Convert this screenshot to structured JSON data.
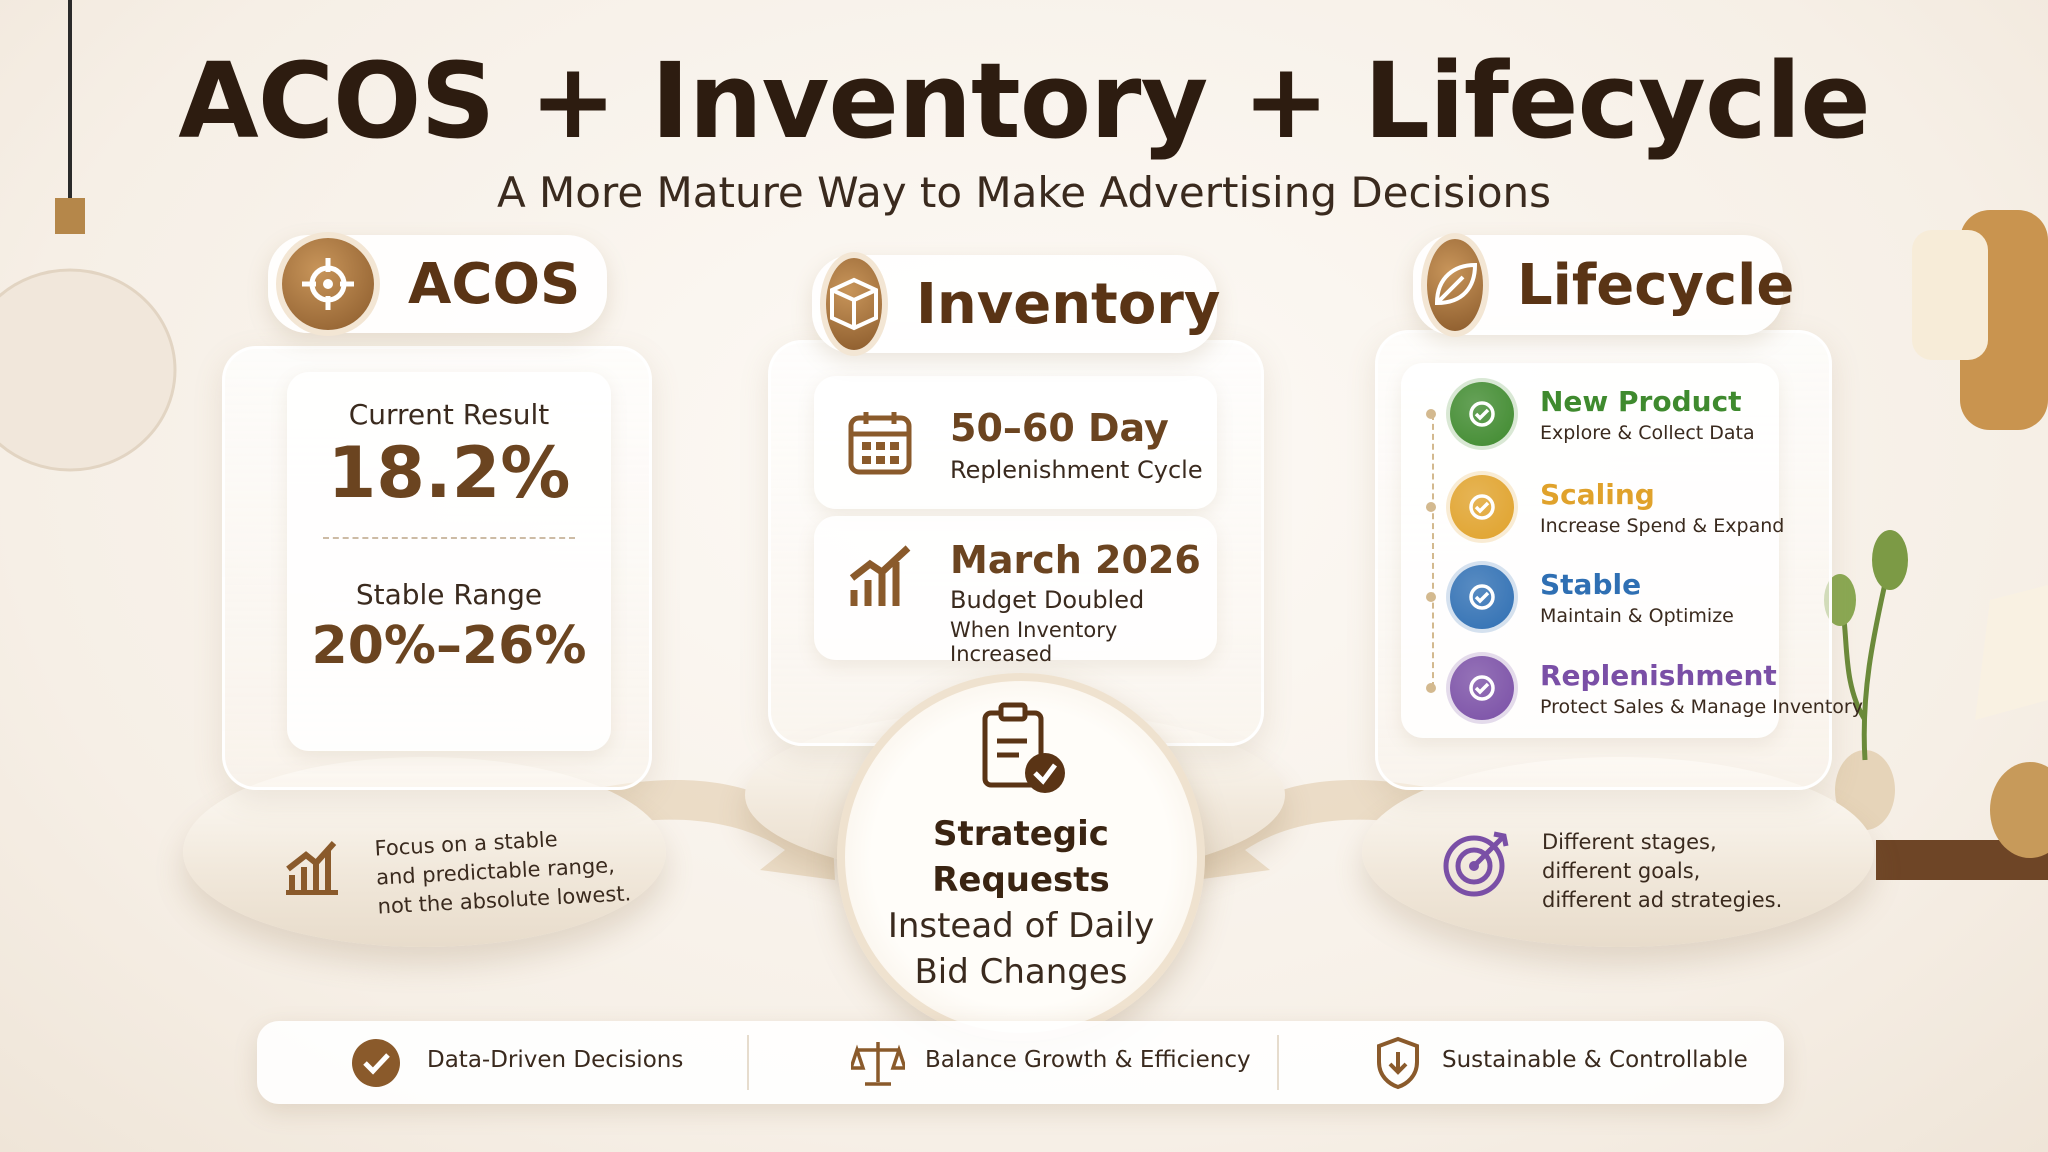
{
  "header": {
    "title": "ACOS + Inventory + Lifecycle",
    "subtitle": "A More Mature Way to Make Advertising Decisions"
  },
  "acos": {
    "title": "ACOS",
    "current_label": "Current Result",
    "current_value": "18.2%",
    "stable_label": "Stable Range",
    "stable_value": "20%–26%",
    "note": [
      "Focus on a stable",
      "and predictable range,",
      "not the absolute lowest."
    ]
  },
  "inventory": {
    "title": "Inventory",
    "items": [
      {
        "heading": "50–60 Day",
        "lines": [
          "Replenishment Cycle"
        ]
      },
      {
        "heading": "March 2026",
        "lines": [
          "Budget Doubled",
          "When Inventory Increased"
        ]
      }
    ]
  },
  "center": {
    "lines": [
      "Strategic Requests",
      "Instead of Daily",
      "Bid Changes"
    ]
  },
  "lifecycle": {
    "title": "Lifecycle",
    "stages": [
      {
        "name": "New Product",
        "description": "Explore & Collect Data",
        "color": "#3f8a2e"
      },
      {
        "name": "Scaling",
        "description": "Increase Spend & Expand",
        "color": "#e0a22b"
      },
      {
        "name": "Stable",
        "description": "Maintain & Optimize",
        "color": "#2f6fb3"
      },
      {
        "name": "Replenishment",
        "description": "Protect Sales & Manage Inventory",
        "color": "#7a4fa6"
      }
    ],
    "note": [
      "Different stages,",
      "different goals,",
      "different ad strategies."
    ]
  },
  "footer": {
    "items": [
      "Data-Driven Decisions",
      "Balance Growth & Efficiency",
      "Sustainable & Controllable"
    ]
  }
}
